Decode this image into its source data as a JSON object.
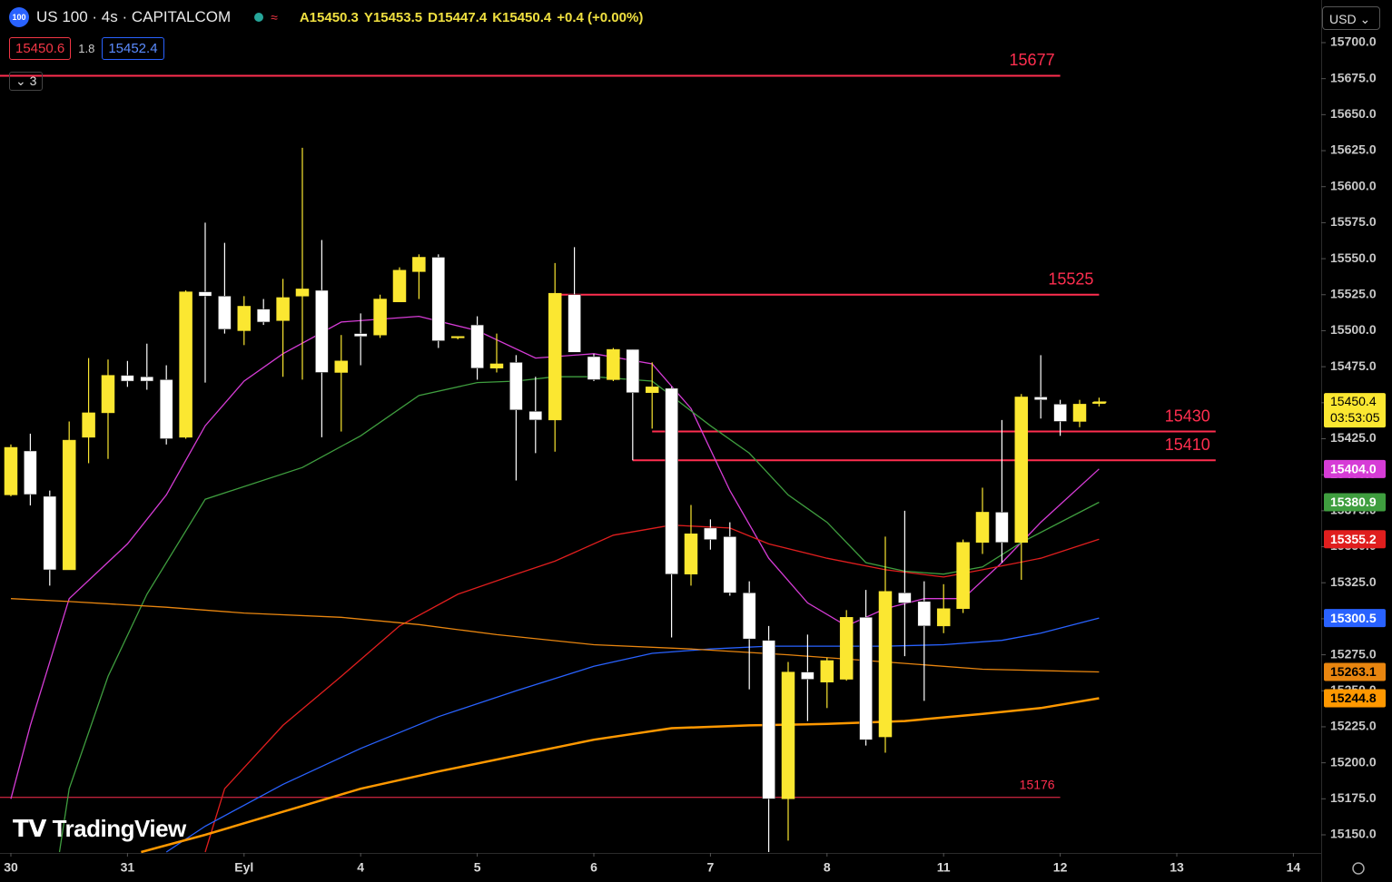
{
  "header": {
    "logo": "100",
    "symbol": "US 100 · 4s · CAPITALCOM",
    "ohlc": [
      "A15450.3",
      "Y15453.5",
      "D15447.4",
      "K15450.4",
      "+0.4 (+0.00%)"
    ],
    "bid": "15450.6",
    "spread": "1.8",
    "ask": "15452.4",
    "indicators": "3",
    "currency": "USD",
    "watermark": "TradingView"
  },
  "chart_data": {
    "type": "candlestick",
    "x": [
      0,
      1,
      2,
      3,
      4,
      5,
      6,
      7,
      8,
      9,
      10,
      11,
      12,
      13,
      14,
      15,
      16,
      17,
      18,
      19,
      20,
      21,
      22,
      23,
      24,
      25,
      26,
      27,
      28,
      29,
      30,
      31,
      32,
      33,
      34,
      35,
      36,
      37,
      38,
      39,
      40,
      41,
      42,
      43,
      44,
      45,
      46,
      47,
      48,
      49,
      50,
      51,
      52,
      53,
      54,
      55,
      56
    ],
    "open": [
      15386,
      15416.5,
      15385,
      15334,
      15426,
      15443,
      15469,
      15468,
      15466,
      15426,
      15527,
      15524,
      15500,
      15515,
      15507,
      15524,
      15528,
      15471,
      15498,
      15497,
      15520,
      15541,
      15551,
      15495,
      15504,
      15474,
      15478,
      15444,
      15438,
      15525,
      15482,
      15466,
      15487,
      15457,
      15460,
      15331,
      15363,
      15357,
      15318,
      15285,
      15175,
      15263,
      15256,
      15258,
      15301,
      15218,
      15318,
      15312,
      15295,
      15307,
      15353,
      15374,
      15353,
      15454,
      15449,
      15437,
      15450.3
    ],
    "high": [
      15421,
      15428.5,
      15389,
      15437,
      15481,
      15480,
      15479,
      15491,
      15476,
      15528,
      15575,
      15561,
      15524,
      15522,
      15536,
      15627,
      15563,
      15497,
      15512,
      15525,
      15544,
      15553,
      15553,
      15496,
      15510,
      15498,
      15483,
      15468,
      15547,
      15558,
      15484,
      15488,
      15487,
      15478,
      15461,
      15379,
      15369,
      15367,
      15326,
      15295,
      15270,
      15289,
      15273,
      15306,
      15320,
      15357,
      15375,
      15326,
      15324,
      15355,
      15391,
      15438,
      15456,
      15483,
      15452,
      15452,
      15453.5
    ],
    "low": [
      15385,
      15378.7,
      15323,
      15334,
      15408,
      15411,
      15461,
      15459,
      15421,
      15425,
      15464,
      15498,
      15490,
      15504,
      15468,
      15466,
      15426,
      15430,
      15476,
      15495,
      15520,
      15522,
      15488,
      15494,
      15466,
      15471,
      15396,
      15415,
      15416,
      15485,
      15465,
      15465,
      15410,
      15432,
      15287,
      15323,
      15348,
      15316,
      15251,
      15138,
      15146,
      15229,
      15238,
      15257,
      15212,
      15207,
      15274,
      15243,
      15290,
      15304,
      15345,
      15339,
      15327,
      15439,
      15427,
      15433,
      15447.4
    ],
    "close": [
      15419,
      15386.3,
      15334,
      15424,
      15443,
      15469,
      15465,
      15465,
      15425,
      15527,
      15524,
      15501,
      15517,
      15506,
      15523,
      15529,
      15471,
      15479,
      15496,
      15522,
      15542,
      15551,
      15493,
      15496,
      15474,
      15477,
      15445,
      15438,
      15526,
      15485,
      15466,
      15487,
      15457,
      15461,
      15331,
      15359,
      15355,
      15318,
      15286,
      15175,
      15263,
      15258,
      15271,
      15301,
      15216,
      15319,
      15311,
      15295,
      15307,
      15353,
      15374,
      15353,
      15454,
      15452,
      15437,
      15449,
      15450.4
    ],
    "up_color": "#fbe731",
    "down_color": "#ffffff",
    "last_price_label": "15450.4",
    "countdown": "03:53:05",
    "lines": [
      {
        "color": "#d63cd6",
        "price_label": "15404.0",
        "x": [
          0,
          1,
          3,
          6,
          8,
          10,
          12,
          14,
          17,
          21,
          24,
          27,
          30,
          33,
          35,
          37,
          39,
          41,
          43,
          45,
          47,
          49,
          51,
          53,
          56
        ],
        "values": [
          15175,
          15226,
          15314,
          15352,
          15386,
          15434,
          15465,
          15484,
          15506,
          15510,
          15500,
          15481,
          15484,
          15477,
          15446,
          15389,
          15342,
          15311,
          15295,
          15307,
          15314,
          15314,
          15339,
          15367,
          15404
        ]
      },
      {
        "color": "#3f9e3f",
        "price_label": "15380.9",
        "x": [
          2.5,
          3,
          5,
          7,
          10,
          15,
          18,
          21,
          24,
          26,
          28,
          30,
          33,
          36,
          38,
          40,
          42,
          44,
          46,
          48,
          50,
          52,
          56
        ],
        "values": [
          15138,
          15182,
          15260,
          15317,
          15383,
          15405,
          15427,
          15455,
          15464,
          15465,
          15468,
          15468,
          15465,
          15434,
          15415,
          15386,
          15367,
          15339,
          15333,
          15331,
          15336,
          15353,
          15380.9
        ]
      },
      {
        "color": "#e01e1e",
        "price_label": "15355.2",
        "x": [
          10,
          11,
          14,
          17,
          20,
          23,
          26,
          28,
          31,
          34,
          37,
          39,
          42,
          45,
          48,
          50,
          53,
          56
        ],
        "values": [
          15138,
          15182,
          15226,
          15260,
          15295,
          15317,
          15331,
          15340,
          15358,
          15365,
          15363,
          15352,
          15342,
          15334,
          15329,
          15334,
          15342,
          15355.2
        ]
      },
      {
        "color": "#2962ff",
        "price_label": "15300.5",
        "x": [
          8,
          10,
          14,
          18,
          22,
          26,
          30,
          33,
          36,
          39,
          42,
          45,
          48,
          51,
          53,
          56
        ],
        "values": [
          15138,
          15156,
          15185,
          15210,
          15232,
          15250,
          15267,
          15276,
          15279,
          15281,
          15281,
          15281,
          15282,
          15285,
          15290,
          15300.5
        ]
      },
      {
        "color": "#e8850f",
        "price_label": "15263.1",
        "x": [
          0,
          3,
          8,
          12,
          17,
          21,
          25,
          30,
          35,
          40,
          45,
          50,
          56
        ],
        "values": [
          15314,
          15312,
          15308,
          15304,
          15301,
          15296,
          15289,
          15282,
          15279,
          15275,
          15270,
          15265,
          15263.1
        ]
      },
      {
        "color": "#ff9800",
        "price_label": "15244.8",
        "x": [
          6.7,
          10,
          14,
          18,
          22,
          26,
          30,
          34,
          38,
          42,
          46,
          50,
          53,
          56
        ],
        "values": [
          15138,
          15150,
          15166,
          15182,
          15194,
          15205,
          15216,
          15224,
          15226,
          15227,
          15229,
          15234,
          15238,
          15244.8
        ]
      }
    ],
    "levels": [
      {
        "value": 15677,
        "x": [
          -0.56,
          54
        ],
        "color": "#ff2e4f"
      },
      {
        "value": 15525,
        "x": [
          27.85,
          56
        ],
        "color": "#ff2e4f"
      },
      {
        "value": 15430,
        "x": [
          33,
          62
        ],
        "color": "#ff2e4f"
      },
      {
        "value": 15410,
        "x": [
          32,
          62
        ],
        "color": "#ff2e4f"
      },
      {
        "value": 15176,
        "x": [
          -0.56,
          54
        ],
        "color": "#ff2e4f"
      }
    ],
    "xlim": [
      -0.56,
      67.43
    ],
    "ylim": [
      15137.4,
      15729.6
    ],
    "xticks": [
      {
        "value": 0,
        "label": "30"
      },
      {
        "value": 6,
        "label": "31"
      },
      {
        "value": 12,
        "label": "Eyl"
      },
      {
        "value": 18,
        "label": "4"
      },
      {
        "value": 24,
        "label": "5"
      },
      {
        "value": 30,
        "label": "6"
      },
      {
        "value": 36,
        "label": "7"
      },
      {
        "value": 42,
        "label": "8"
      },
      {
        "value": 48,
        "label": "11"
      },
      {
        "value": 54,
        "label": "12"
      },
      {
        "value": 60,
        "label": "13"
      },
      {
        "value": 66,
        "label": "14"
      }
    ],
    "yticks": [
      {
        "value": 15150,
        "label": "15150.0"
      },
      {
        "value": 15175,
        "label": "15175.0"
      },
      {
        "value": 15200,
        "label": "15200.0"
      },
      {
        "value": 15225,
        "label": "15225.0"
      },
      {
        "value": 15250,
        "label": "15250.0"
      },
      {
        "value": 15275,
        "label": "15275.0"
      },
      {
        "value": 15300,
        "label": "15300.0"
      },
      {
        "value": 15325,
        "label": "15325.0"
      },
      {
        "value": 15350,
        "label": "15350.0"
      },
      {
        "value": 15375,
        "label": "15375.0"
      },
      {
        "value": 15400,
        "label": "15400.0"
      },
      {
        "value": 15425,
        "label": "15425.0"
      },
      {
        "value": 15450,
        "label": "15450.0"
      },
      {
        "value": 15475,
        "label": "15475.0"
      },
      {
        "value": 15500,
        "label": "15500.0"
      },
      {
        "value": 15525,
        "label": "15525.0"
      },
      {
        "value": 15550,
        "label": "15550.0"
      },
      {
        "value": 15575,
        "label": "15575.0"
      },
      {
        "value": 15600,
        "label": "15600.0"
      },
      {
        "value": 15625,
        "label": "15625.0"
      },
      {
        "value": 15650,
        "label": "15650.0"
      },
      {
        "value": 15675,
        "label": "15675.0"
      },
      {
        "value": 15700,
        "label": "15700.0"
      }
    ]
  }
}
